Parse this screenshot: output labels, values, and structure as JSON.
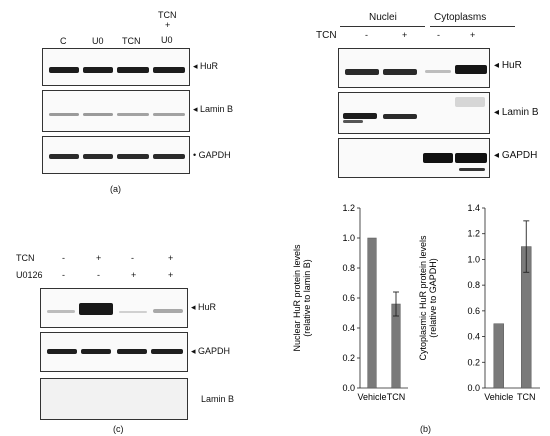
{
  "panel_a": {
    "label": "(a)",
    "lanes": [
      "C",
      "U0",
      "TCN",
      "TCN\n+\nU0"
    ],
    "lane_top": "TCN",
    "lane_mid": "+",
    "lane_bot": "U0",
    "blots": [
      "HuR",
      "Lamin B",
      "GAPDH"
    ]
  },
  "panel_top_right": {
    "group_nuclei": "Nuclei",
    "group_cytoplasms": "Cytoplasms",
    "tcn_label": "TCN",
    "tcn_signs": [
      "-",
      "+",
      "-",
      "+"
    ],
    "blots": [
      "HuR",
      "Lamin B",
      "GAPDH"
    ]
  },
  "panel_c": {
    "label": "(c)",
    "row1_label": "TCN",
    "row1_signs": [
      "-",
      "+",
      "-",
      "+"
    ],
    "row2_label": "U0126",
    "row2_signs": [
      "-",
      "-",
      "+",
      "+"
    ],
    "blots": [
      "HuR",
      "GAPDH",
      "Lamin B"
    ]
  },
  "panel_b": {
    "label": "(b)"
  },
  "chart_data": [
    {
      "type": "bar",
      "categories": [
        "Vehicle",
        "TCN"
      ],
      "values": [
        1.0,
        0.56
      ],
      "errors": [
        0,
        0.08
      ],
      "ylabel": "Nuclear HuR protein levels\n(relative to lamin B)",
      "ylabel_line1": "Nuclear HuR protein levels",
      "ylabel_line2": "(relative to lamin B)",
      "ylim": [
        0,
        1.2
      ],
      "yticks": [
        "0.0",
        "0.2",
        "0.4",
        "0.6",
        "0.8",
        "1.0",
        "1.2"
      ],
      "color": "#7a7a7a"
    },
    {
      "type": "bar",
      "categories": [
        "Vehicle",
        "TCN"
      ],
      "values": [
        0.5,
        1.1
      ],
      "errors": [
        0,
        0.2
      ],
      "ylabel": "Cytoplasmic HuR protein levels\n(relative to GAPDH)",
      "ylabel_line1": "Cytoplasmic HuR protein levels",
      "ylabel_line2": "(relative to GAPDH)",
      "ylim": [
        0,
        1.4
      ],
      "yticks": [
        "0.0",
        "0.2",
        "0.4",
        "0.6",
        "0.8",
        "1.0",
        "1.2",
        "1.4"
      ],
      "color": "#7a7a7a"
    }
  ]
}
